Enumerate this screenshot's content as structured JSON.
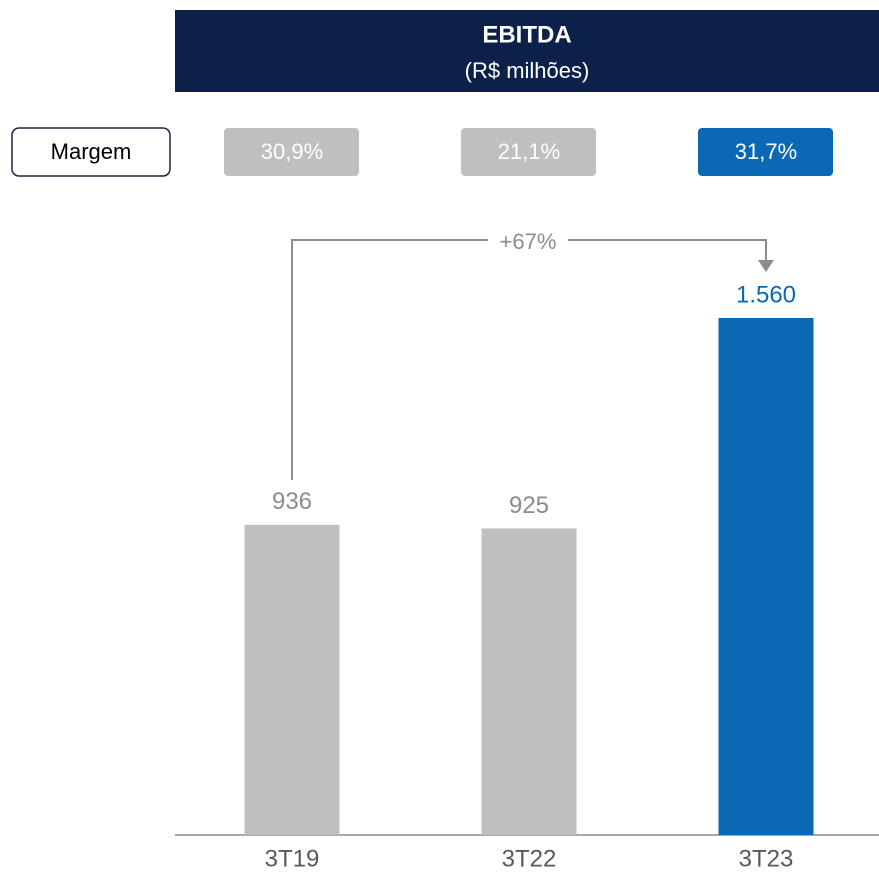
{
  "chart_data": {
    "type": "bar",
    "title": "EBITDA",
    "subtitle": "(R$ milhões)",
    "categories": [
      "3T19",
      "3T22",
      "3T23"
    ],
    "values": [
      936,
      925,
      1560
    ],
    "value_labels": [
      "936",
      "925",
      "1.560"
    ],
    "colors": [
      "#bfbfbf",
      "#bfbfbf",
      "#0a68b4"
    ],
    "label_colors": [
      "#8c8c8c",
      "#8c8c8c",
      "#0a68b4"
    ],
    "margin": {
      "label": "Margem",
      "values": [
        30.9,
        21.1,
        31.7
      ],
      "value_labels": [
        "30,9%",
        "21,1%",
        "31,7%"
      ]
    },
    "annotation": "+67%"
  }
}
